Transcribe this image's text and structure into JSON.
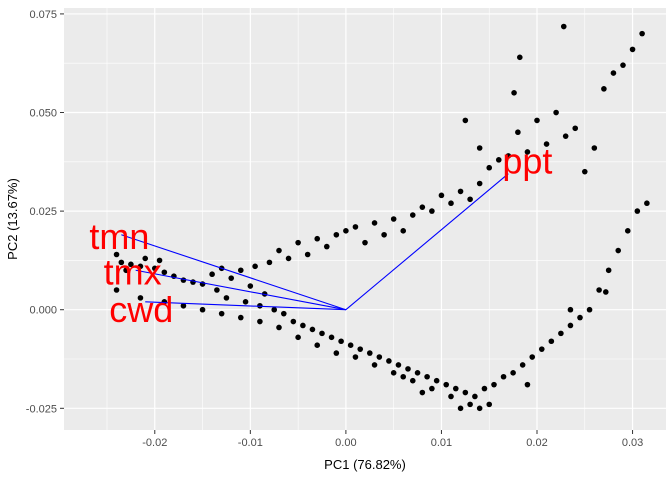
{
  "chart_data": {
    "type": "scatter",
    "title": "",
    "xlabel": "PC1 (76.82%)",
    "ylabel": "PC2 (13.67%)",
    "xlim": [
      -0.0295,
      0.0335
    ],
    "ylim": [
      -0.0305,
      0.0765
    ],
    "x_ticks": [
      -0.02,
      -0.01,
      0.0,
      0.01,
      0.02,
      0.03
    ],
    "x_tick_labels": [
      "-0.02",
      "-0.01",
      "0.00",
      "0.01",
      "0.02",
      "0.03"
    ],
    "y_ticks": [
      -0.025,
      0.0,
      0.025,
      0.05,
      0.075
    ],
    "y_tick_labels": [
      "-0.025",
      "0.000",
      "0.025",
      "0.050",
      "0.075"
    ],
    "grid": true,
    "colors": {
      "panel": "#ebebeb",
      "grid": "#ffffff",
      "points": "#000000",
      "loadings": "#0000ff",
      "loading_labels": "#ff0000"
    },
    "points": [
      [
        -0.0235,
        0.012
      ],
      [
        -0.0225,
        0.0115
      ],
      [
        -0.0215,
        0.011
      ],
      [
        -0.02,
        0.0105
      ],
      [
        -0.019,
        0.0095
      ],
      [
        -0.018,
        0.0085
      ],
      [
        -0.017,
        0.0075
      ],
      [
        -0.016,
        0.007
      ],
      [
        -0.015,
        0.0065
      ],
      [
        -0.014,
        0.009
      ],
      [
        -0.0135,
        0.005
      ],
      [
        -0.013,
        0.0105
      ],
      [
        -0.0125,
        0.003
      ],
      [
        -0.012,
        0.008
      ],
      [
        -0.011,
        0.01
      ],
      [
        -0.0105,
        0.002
      ],
      [
        -0.01,
        0.006
      ],
      [
        -0.0095,
        0.011
      ],
      [
        -0.009,
        0.001
      ],
      [
        -0.0085,
        0.004
      ],
      [
        -0.008,
        0.012
      ],
      [
        -0.0075,
        0.0
      ],
      [
        -0.007,
        0.015
      ],
      [
        -0.0065,
        -0.001
      ],
      [
        -0.006,
        0.013
      ],
      [
        -0.0055,
        -0.003
      ],
      [
        -0.005,
        0.017
      ],
      [
        -0.0045,
        -0.004
      ],
      [
        -0.004,
        0.014
      ],
      [
        -0.0035,
        -0.005
      ],
      [
        -0.003,
        0.018
      ],
      [
        -0.0025,
        -0.006
      ],
      [
        -0.002,
        0.016
      ],
      [
        -0.0015,
        -0.007
      ],
      [
        -0.001,
        0.019
      ],
      [
        -0.0005,
        -0.008
      ],
      [
        0.0,
        0.02
      ],
      [
        0.0005,
        -0.009
      ],
      [
        0.001,
        0.021
      ],
      [
        0.0015,
        -0.01
      ],
      [
        0.002,
        0.017
      ],
      [
        0.0025,
        -0.011
      ],
      [
        0.003,
        0.022
      ],
      [
        0.0035,
        -0.012
      ],
      [
        0.004,
        0.019
      ],
      [
        0.0045,
        -0.013
      ],
      [
        0.005,
        0.023
      ],
      [
        0.0055,
        -0.014
      ],
      [
        0.006,
        0.02
      ],
      [
        0.0065,
        -0.015
      ],
      [
        0.007,
        0.024
      ],
      [
        0.0075,
        -0.016
      ],
      [
        0.008,
        0.026
      ],
      [
        0.0085,
        -0.017
      ],
      [
        0.009,
        0.025
      ],
      [
        0.0095,
        -0.018
      ],
      [
        0.01,
        0.029
      ],
      [
        0.0105,
        -0.019
      ],
      [
        0.011,
        0.027
      ],
      [
        0.0115,
        -0.02
      ],
      [
        0.012,
        0.03
      ],
      [
        0.0125,
        -0.021
      ],
      [
        0.013,
        0.028
      ],
      [
        0.0135,
        -0.022
      ],
      [
        0.014,
        0.032
      ],
      [
        0.0145,
        -0.02
      ],
      [
        0.015,
        0.036
      ],
      [
        0.0155,
        -0.019
      ],
      [
        0.016,
        0.038
      ],
      [
        0.0165,
        -0.017
      ],
      [
        0.017,
        0.039
      ],
      [
        0.0175,
        -0.016
      ],
      [
        0.018,
        0.045
      ],
      [
        0.0185,
        -0.014
      ],
      [
        0.019,
        0.04
      ],
      [
        0.0195,
        -0.012
      ],
      [
        0.02,
        0.048
      ],
      [
        0.0205,
        -0.01
      ],
      [
        0.021,
        0.042
      ],
      [
        0.0215,
        -0.008
      ],
      [
        0.022,
        0.05
      ],
      [
        0.0225,
        -0.006
      ],
      [
        0.023,
        0.044
      ],
      [
        0.0235,
        -0.004
      ],
      [
        0.024,
        0.046
      ],
      [
        0.0245,
        -0.002
      ],
      [
        0.025,
        0.035
      ],
      [
        0.0255,
        0.0
      ],
      [
        0.026,
        0.041
      ],
      [
        0.0265,
        0.005
      ],
      [
        0.027,
        0.056
      ],
      [
        0.0275,
        0.01
      ],
      [
        0.028,
        0.06
      ],
      [
        0.0285,
        0.015
      ],
      [
        0.029,
        0.062
      ],
      [
        0.0295,
        0.02
      ],
      [
        0.03,
        0.066
      ],
      [
        0.0305,
        0.025
      ],
      [
        0.031,
        0.07
      ],
      [
        0.0315,
        0.027
      ],
      [
        0.0228,
        0.0718
      ],
      [
        0.0182,
        0.064
      ],
      [
        0.0176,
        0.055
      ],
      [
        0.0125,
        0.048
      ],
      [
        0.014,
        0.041
      ],
      [
        0.0272,
        0.0045
      ],
      [
        0.0235,
        0.0
      ],
      [
        0.019,
        -0.019
      ],
      [
        0.015,
        -0.024
      ],
      [
        0.012,
        -0.025
      ],
      [
        0.008,
        -0.021
      ],
      [
        0.006,
        -0.017
      ],
      [
        -0.024,
        0.014
      ],
      [
        -0.023,
        0.01
      ],
      [
        -0.021,
        0.013
      ],
      [
        -0.0195,
        0.0125
      ],
      [
        -0.024,
        0.005
      ],
      [
        -0.0215,
        0.003
      ],
      [
        -0.019,
        0.002
      ],
      [
        -0.017,
        0.001
      ],
      [
        -0.015,
        0.0
      ],
      [
        -0.013,
        -0.001
      ],
      [
        -0.011,
        -0.002
      ],
      [
        -0.009,
        -0.003
      ],
      [
        -0.007,
        -0.0045
      ],
      [
        -0.005,
        -0.007
      ],
      [
        -0.003,
        -0.009
      ],
      [
        -0.001,
        -0.011
      ],
      [
        0.001,
        -0.012
      ],
      [
        0.003,
        -0.014
      ],
      [
        0.005,
        -0.016
      ],
      [
        0.007,
        -0.018
      ],
      [
        0.009,
        -0.02
      ],
      [
        0.011,
        -0.022
      ],
      [
        0.013,
        -0.024
      ],
      [
        0.014,
        -0.025
      ]
    ],
    "loadings": [
      {
        "label": "tmn",
        "x": -0.0235,
        "y": 0.019
      },
      {
        "label": "tmx",
        "x": -0.022,
        "y": 0.01
      },
      {
        "label": "cwd",
        "x": -0.021,
        "y": 0.002
      },
      {
        "label": "ppt",
        "x": 0.017,
        "y": 0.0345
      }
    ]
  }
}
